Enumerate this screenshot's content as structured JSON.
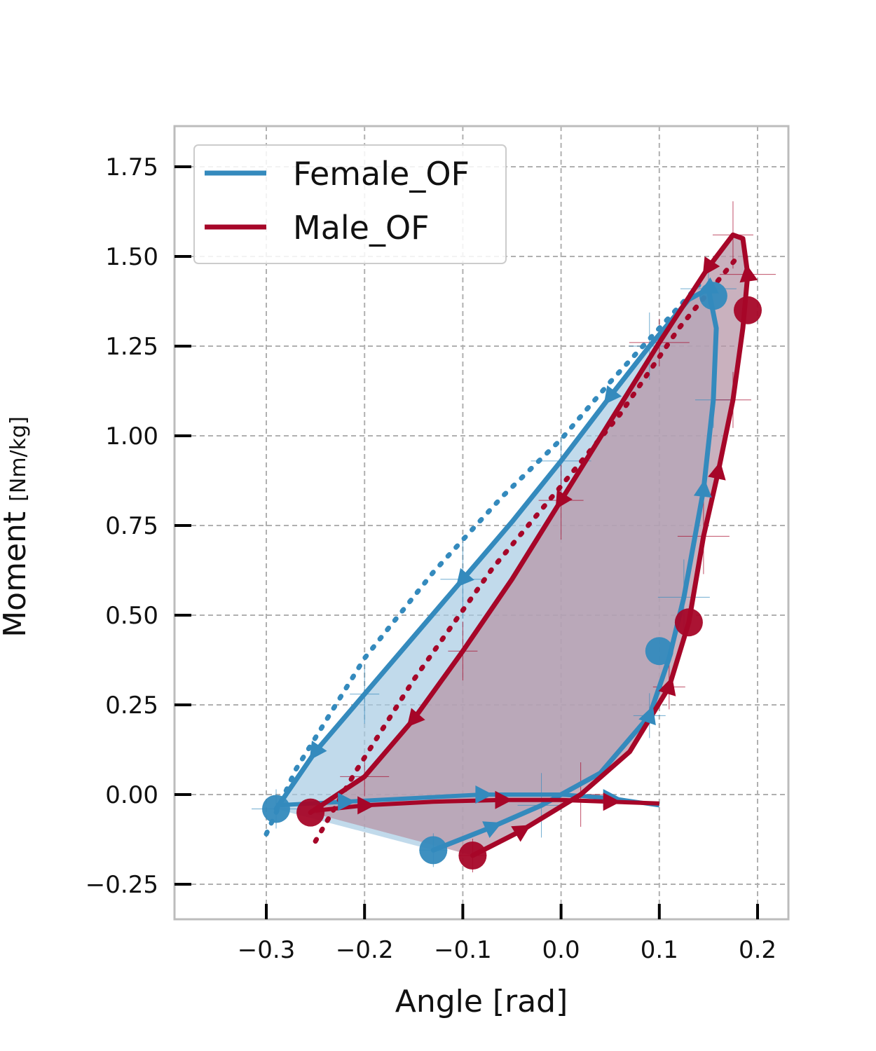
{
  "chart_data": {
    "type": "line",
    "xlabel": "Angle [rad]",
    "ylabel": "Moment",
    "ylabel_unit": "[Nm/kg]",
    "xlim": [
      -0.3,
      0.2
    ],
    "ylim": [
      -0.25,
      1.75
    ],
    "xticks": [
      "−0.3",
      "−0.2",
      "−0.1",
      "0.0",
      "0.1",
      "0.2"
    ],
    "yticks": [
      "−0.25",
      "0.00",
      "0.25",
      "0.50",
      "0.75",
      "1.00",
      "1.25",
      "1.50",
      "1.75"
    ],
    "grid": true,
    "legend_placement": "top-left",
    "series": [
      {
        "name": "Female_OF",
        "color": "#348abd",
        "fill_color": "#a6cbe3",
        "loop": [
          [
            -0.13,
            -0.155
          ],
          [
            -0.07,
            -0.09
          ],
          [
            -0.02,
            -0.03
          ],
          [
            0.04,
            0.06
          ],
          [
            0.09,
            0.22
          ],
          [
            0.11,
            0.38
          ],
          [
            0.125,
            0.55
          ],
          [
            0.145,
            0.85
          ],
          [
            0.155,
            1.1
          ],
          [
            0.158,
            1.3
          ],
          [
            0.15,
            1.41
          ],
          [
            0.13,
            1.38
          ],
          [
            0.09,
            1.25
          ],
          [
            0.05,
            1.11
          ],
          [
            0.0,
            0.93
          ],
          [
            -0.05,
            0.76
          ],
          [
            -0.1,
            0.6
          ],
          [
            -0.15,
            0.44
          ],
          [
            -0.2,
            0.28
          ],
          [
            -0.25,
            0.12
          ],
          [
            -0.29,
            -0.04
          ]
        ],
        "dotted": [
          [
            -0.3,
            -0.11
          ],
          [
            -0.27,
            0.07
          ],
          [
            -0.2,
            0.38
          ],
          [
            -0.13,
            0.62
          ],
          [
            -0.06,
            0.83
          ],
          [
            0.0,
            0.99
          ],
          [
            0.05,
            1.15
          ],
          [
            0.1,
            1.3
          ],
          [
            0.14,
            1.42
          ]
        ],
        "flat": [
          [
            -0.29,
            -0.03
          ],
          [
            -0.22,
            -0.02
          ],
          [
            -0.15,
            -0.01
          ],
          [
            -0.08,
            0.0
          ],
          [
            0.0,
            0.0
          ],
          [
            0.05,
            -0.01
          ],
          [
            0.1,
            -0.03
          ]
        ],
        "markers": [
          [
            -0.13,
            -0.155
          ],
          [
            -0.29,
            -0.04
          ],
          [
            0.1,
            0.4
          ],
          [
            0.155,
            1.39
          ]
        ]
      },
      {
        "name": "Male_OF",
        "color": "#a60628",
        "fill_color": "#b797a8",
        "loop": [
          [
            -0.09,
            -0.17
          ],
          [
            -0.04,
            -0.1
          ],
          [
            0.02,
            0.0
          ],
          [
            0.07,
            0.12
          ],
          [
            0.11,
            0.3
          ],
          [
            0.13,
            0.48
          ],
          [
            0.145,
            0.72
          ],
          [
            0.16,
            0.9
          ],
          [
            0.175,
            1.1
          ],
          [
            0.185,
            1.3
          ],
          [
            0.19,
            1.45
          ],
          [
            0.185,
            1.55
          ],
          [
            0.175,
            1.56
          ],
          [
            0.15,
            1.47
          ],
          [
            0.1,
            1.26
          ],
          [
            0.05,
            1.04
          ],
          [
            0.0,
            0.82
          ],
          [
            -0.05,
            0.6
          ],
          [
            -0.1,
            0.4
          ],
          [
            -0.15,
            0.21
          ],
          [
            -0.2,
            0.05
          ],
          [
            -0.255,
            -0.05
          ]
        ],
        "dotted": [
          [
            -0.25,
            -0.13
          ],
          [
            -0.21,
            0.06
          ],
          [
            -0.15,
            0.32
          ],
          [
            -0.07,
            0.63
          ],
          [
            0.0,
            0.86
          ],
          [
            0.06,
            1.06
          ],
          [
            0.12,
            1.3
          ],
          [
            0.18,
            1.5
          ]
        ],
        "flat": [
          [
            -0.25,
            -0.045
          ],
          [
            -0.2,
            -0.03
          ],
          [
            -0.13,
            -0.02
          ],
          [
            -0.06,
            -0.015
          ],
          [
            0.0,
            -0.015
          ],
          [
            0.05,
            -0.02
          ],
          [
            0.1,
            -0.025
          ]
        ],
        "markers": [
          [
            -0.09,
            -0.17
          ],
          [
            -0.255,
            -0.05
          ],
          [
            0.13,
            0.48
          ],
          [
            0.19,
            1.35
          ]
        ]
      }
    ]
  }
}
